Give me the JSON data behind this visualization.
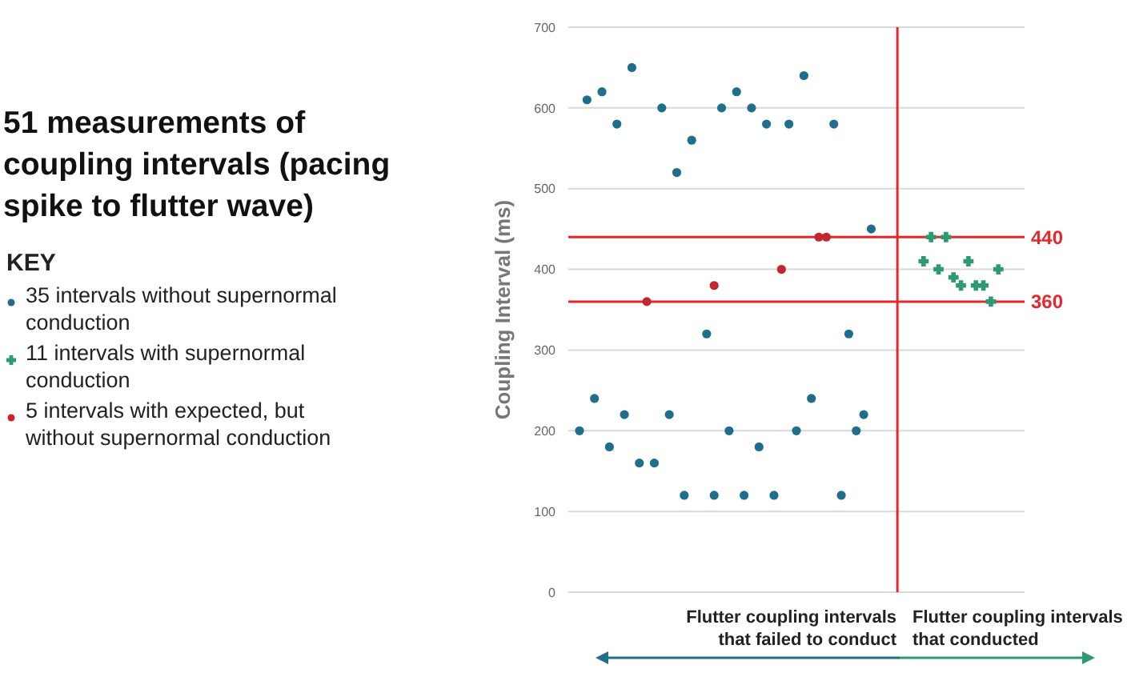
{
  "chart_data": {
    "type": "scatter",
    "title": "51 measurements of coupling intervals (pacing spike to flutter wave)",
    "ylabel": "Coupling Interval (ms)",
    "legend_title": "KEY",
    "legend": "left",
    "grid": true,
    "tick_labels": "y",
    "categories": [
      null,
      null,
      null,
      null,
      null,
      null,
      null,
      null,
      null,
      null,
      null,
      null,
      null,
      null,
      null,
      null,
      null,
      null,
      null,
      null,
      null,
      null,
      null,
      null,
      null,
      null,
      null,
      null,
      null,
      null,
      null,
      null,
      null,
      null,
      null,
      null,
      null,
      null,
      null,
      null,
      null,
      null,
      null,
      null,
      null,
      null,
      null,
      null,
      null,
      null,
      null,
      null,
      null,
      null,
      null,
      null,
      null,
      null,
      null,
      null,
      null
    ],
    "ylim": [
      0,
      700
    ],
    "yticks": [
      0,
      100,
      200,
      300,
      400,
      500,
      600,
      700
    ],
    "series": [
      {
        "name": "35 intervals without supernormal conduction",
        "color": "#1f6e8c",
        "marker": "circle",
        "values": [
          null,
          200,
          610,
          240,
          620,
          180,
          580,
          220,
          650,
          160,
          null,
          160,
          600,
          220,
          520,
          120,
          560,
          null,
          320,
          120,
          600,
          200,
          620,
          120,
          600,
          180,
          580,
          120,
          null,
          580,
          200,
          640,
          240,
          null,
          null,
          580,
          120,
          320,
          200,
          220,
          450,
          null,
          null,
          null,
          null,
          null,
          null,
          null,
          null,
          null,
          null,
          null,
          null,
          null,
          null,
          null,
          null,
          null,
          null,
          null,
          null
        ]
      },
      {
        "name": "11 intervals with supernormal conduction",
        "color": "#2e9a74",
        "marker": "cross",
        "values": [
          null,
          null,
          null,
          null,
          null,
          null,
          null,
          null,
          null,
          null,
          null,
          null,
          null,
          null,
          null,
          null,
          null,
          null,
          null,
          null,
          null,
          null,
          null,
          null,
          null,
          null,
          null,
          null,
          null,
          null,
          null,
          null,
          null,
          null,
          null,
          null,
          null,
          null,
          null,
          null,
          null,
          null,
          null,
          null,
          null,
          null,
          null,
          410,
          440,
          400,
          440,
          390,
          380,
          410,
          380,
          380,
          360,
          400,
          null,
          null,
          null
        ]
      },
      {
        "name": "5 intervals with expected, but without supernormal conduction",
        "color": "#c0282d",
        "marker": "circle",
        "values": [
          null,
          null,
          null,
          null,
          null,
          null,
          null,
          null,
          null,
          null,
          360,
          null,
          null,
          null,
          null,
          null,
          null,
          null,
          null,
          380,
          null,
          null,
          null,
          null,
          null,
          null,
          null,
          null,
          400,
          null,
          null,
          null,
          null,
          440,
          440,
          null,
          null,
          null,
          null,
          null,
          null,
          null,
          null,
          null,
          null,
          null,
          null,
          null,
          null,
          null,
          null,
          null,
          null,
          null,
          null,
          null,
          null,
          null,
          null,
          null,
          null
        ]
      }
    ],
    "ref_lines": [
      {
        "axis": "y",
        "value": 440,
        "label": "440",
        "color": "#e8262b"
      },
      {
        "axis": "y",
        "value": 360,
        "label": "360",
        "color": "#e8262b"
      }
    ],
    "annotations": [
      "Flutter coupling intervals that failed to conduct",
      "Flutter coupling intervals that conducted"
    ]
  }
}
